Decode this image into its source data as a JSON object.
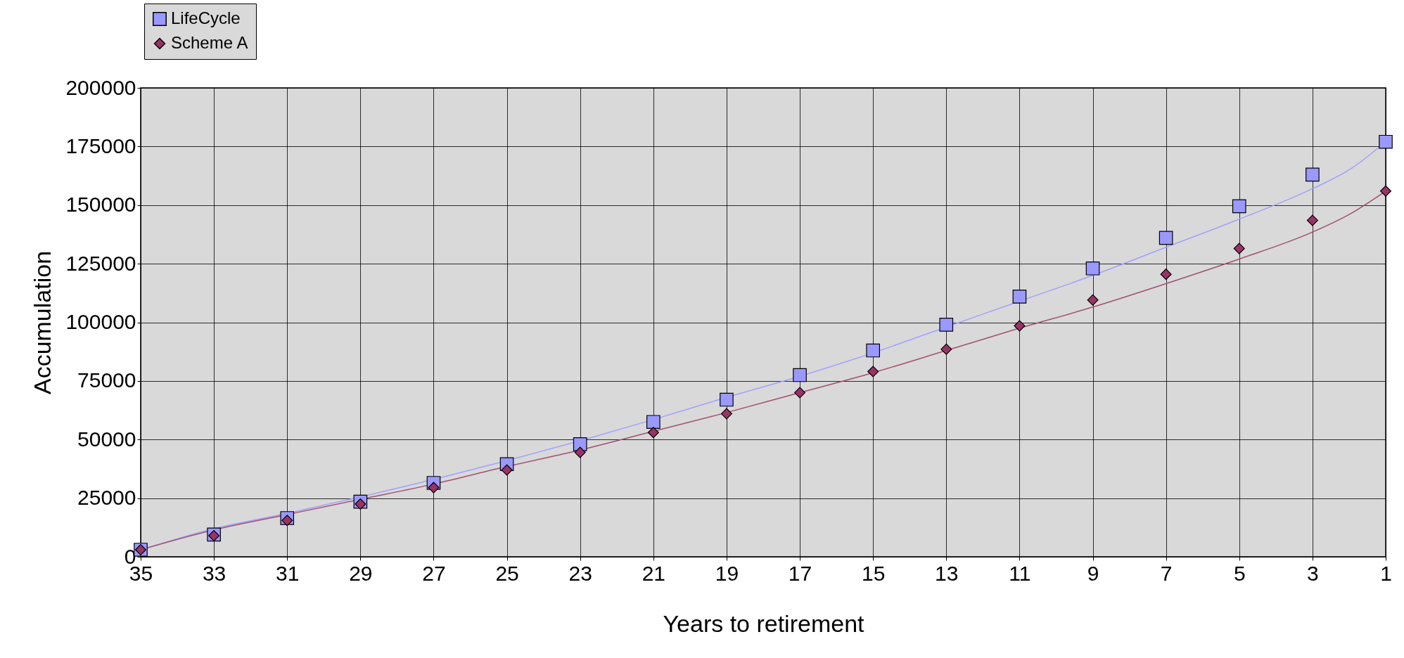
{
  "chart_data": {
    "type": "scatter",
    "xlabel": "Years to retirement",
    "ylabel": "Accumulation",
    "xlim": [
      35,
      1
    ],
    "xticks": [
      35,
      33,
      31,
      29,
      27,
      25,
      23,
      21,
      19,
      17,
      15,
      13,
      11,
      9,
      7,
      5,
      3,
      1
    ],
    "ylim": [
      0,
      200000
    ],
    "yticks": [
      0,
      25000,
      50000,
      75000,
      100000,
      125000,
      150000,
      175000,
      200000
    ],
    "grid": true,
    "legend": "top left",
    "x": [
      35,
      33,
      31,
      29,
      27,
      25,
      23,
      21,
      19,
      17,
      15,
      13,
      11,
      9,
      7,
      5,
      3,
      1
    ],
    "series": [
      {
        "name": "LifeCycle",
        "color": "#9999ff",
        "marker": "square",
        "values": [
          3000,
          9500,
          16500,
          23500,
          31500,
          39500,
          48000,
          57500,
          67000,
          77500,
          88000,
          99000,
          111000,
          123000,
          136000,
          149500,
          163000,
          177000
        ]
      },
      {
        "name": "Scheme A",
        "color": "#993366",
        "marker": "diamond",
        "values": [
          3000,
          9000,
          15500,
          22500,
          29500,
          37000,
          44500,
          53000,
          61000,
          70000,
          79000,
          88500,
          98500,
          109500,
          120500,
          131500,
          143500,
          156000
        ]
      },
      {
        "type": "line",
        "color": "#a0a0ff",
        "x": [
          35,
          33,
          31,
          29,
          27,
          25,
          23,
          21,
          19,
          17,
          15,
          13,
          11,
          9,
          7,
          5,
          3,
          2,
          1
        ],
        "values": [
          3000,
          12000,
          18500,
          25500,
          33000,
          41000,
          49500,
          58500,
          68000,
          77000,
          87000,
          98000,
          109000,
          120000,
          132000,
          144000,
          157000,
          165000,
          177000
        ]
      },
      {
        "type": "line",
        "color": "#a05070",
        "x": [
          35,
          33,
          31,
          29,
          27,
          25,
          23,
          21,
          19,
          17,
          15,
          13,
          11,
          9,
          7,
          5,
          3,
          2,
          1
        ],
        "values": [
          3000,
          11500,
          18000,
          24500,
          31000,
          38500,
          45500,
          53500,
          61500,
          70000,
          78500,
          88000,
          97500,
          106500,
          116500,
          127000,
          138500,
          146000,
          156000
        ]
      }
    ]
  }
}
